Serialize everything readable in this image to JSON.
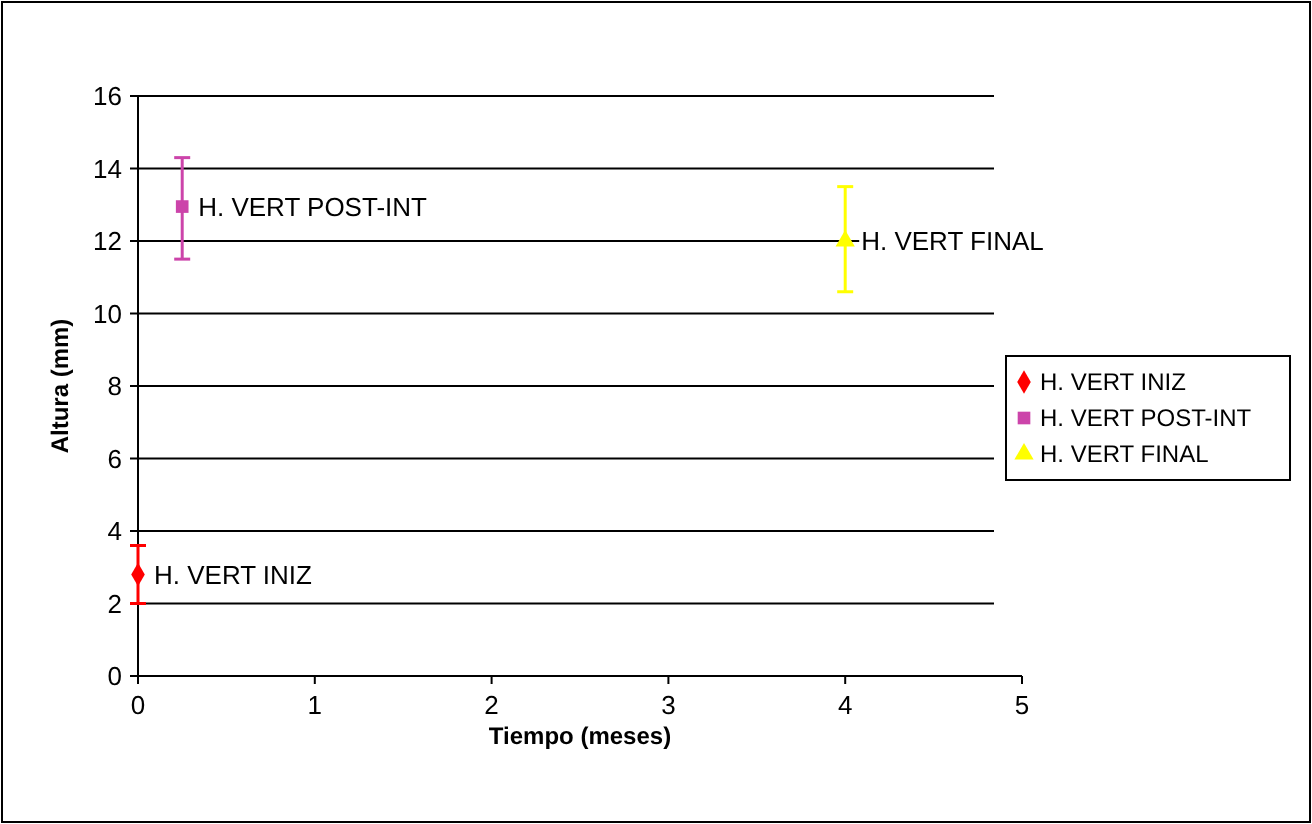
{
  "chart_data": {
    "type": "scatter",
    "xlabel": "Tiempo (meses)",
    "ylabel": "Altura (mm)",
    "xlim": [
      0,
      5
    ],
    "xticks": [
      0,
      1,
      2,
      3,
      4,
      5
    ],
    "ylim": [
      0,
      16
    ],
    "yticks": [
      0,
      2,
      4,
      6,
      8,
      10,
      12,
      14,
      16
    ],
    "grid": "y",
    "legend": "right",
    "series": [
      {
        "name": "H. VERT INIZ",
        "color": "#ff0000",
        "marker": "diamond",
        "x": [
          0
        ],
        "values": [
          2.8
        ],
        "errors": [
          [
            2.0,
            3.6
          ]
        ]
      },
      {
        "name": "H. VERT POST-INT",
        "color": "#cc44aa",
        "marker": "square",
        "x": [
          0.25
        ],
        "values": [
          12.95
        ],
        "errors": [
          [
            11.5,
            14.3
          ]
        ]
      },
      {
        "name": "H. VERT FINAL",
        "color": "#ffff00",
        "marker": "triangle",
        "x": [
          4
        ],
        "values": [
          12.0
        ],
        "errors": [
          [
            10.6,
            13.5
          ]
        ]
      }
    ]
  }
}
